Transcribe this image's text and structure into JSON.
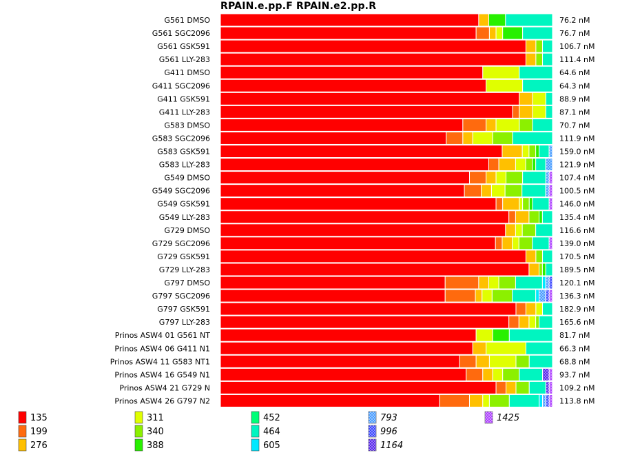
{
  "title": "RPAIN.e.pp.F  RPAIN.e2.pp.R",
  "chart_data": {
    "type": "bar",
    "orientation": "horizontal",
    "stacked": true,
    "normalized": true,
    "title": "RPAIN.e.pp.F  RPAIN.e2.pp.R",
    "categories": [
      "G561 DMSO",
      "G561 SGC2096",
      "G561 GSK591",
      "G561 LLY-283",
      "G411 DMSO",
      "G411 SGC2096",
      "G411 GSK591",
      "G411 LLY-283",
      "G583 DMSO",
      "G583 SGC2096",
      "G583 GSK591",
      "G583 LLY-283",
      "G549 DMSO",
      "G549 SGC2096",
      "G549 GSK591",
      "G549 LLY-283",
      "G729 DMSO",
      "G729 SGC2096",
      "G729 GSK591",
      "G729 LLY-283",
      "G797 DMSO",
      "G797 SGC2096",
      "G797 GSK591",
      "G797 LLY-283",
      "Prinos ASW4 01 G561 NT",
      "Prinos ASW4 06 G411 N1",
      "Prinos ASW4 11 G583 NT1",
      "Prinos ASW4 16 G549 N1",
      "Prinos ASW4 21 G729 N",
      "Prinos ASW4 26 G797 N2"
    ],
    "row_values": [
      "76.2 nM",
      "76.7 nM",
      "106.7 nM",
      "111.4 nM",
      "64.6 nM",
      "64.3 nM",
      "88.9 nM",
      "87.1 nM",
      "70.7 nM",
      "111.9 nM",
      "159.0 nM",
      "121.9 nM",
      "107.4 nM",
      "100.5 nM",
      "146.0 nM",
      "135.4 nM",
      "116.6 nM",
      "139.0 nM",
      "170.5 nM",
      "189.5 nM",
      "120.1 nM",
      "136.3 nM",
      "182.9 nM",
      "165.6 nM",
      "81.7 nM",
      "66.3 nM",
      "68.8 nM",
      "93.7 nM",
      "109.2 nM",
      "113.8 nM"
    ],
    "legend": [
      {
        "label": "135",
        "color": "#ff0000",
        "italic": false
      },
      {
        "label": "199",
        "color": "#ff6a0e",
        "italic": false
      },
      {
        "label": "276",
        "color": "#ffc000",
        "italic": false
      },
      {
        "label": "311",
        "color": "#e0ff00",
        "italic": false
      },
      {
        "label": "340",
        "color": "#8cf000",
        "italic": false
      },
      {
        "label": "388",
        "color": "#28f000",
        "italic": false
      },
      {
        "label": "452",
        "color": "#00ff78",
        "italic": false
      },
      {
        "label": "464",
        "color": "#00f5c0",
        "italic": false
      },
      {
        "label": "605",
        "color": "#00e8ff",
        "italic": false
      },
      {
        "label": "793",
        "color": "#2a8cff",
        "italic": true
      },
      {
        "label": "996",
        "color": "#1a28ff",
        "italic": true
      },
      {
        "label": "1164",
        "color": "#3a00e8",
        "italic": true
      },
      {
        "label": "1425",
        "color": "#a020ff",
        "italic": true
      }
    ],
    "series_percent": [
      [
        77,
        0,
        3,
        0,
        0,
        5,
        0,
        14,
        0,
        0,
        0,
        0,
        0
      ],
      [
        77,
        4,
        2,
        2,
        0,
        6,
        0,
        9,
        0,
        0,
        0,
        0,
        0
      ],
      [
        92,
        0,
        3,
        0,
        2,
        0,
        0,
        3,
        0,
        0,
        0,
        0,
        0
      ],
      [
        92,
        0,
        3,
        0,
        2,
        0,
        0,
        3,
        0,
        0,
        0,
        0,
        0
      ],
      [
        79,
        0,
        0,
        11,
        0,
        0,
        0,
        10,
        0,
        0,
        0,
        0,
        0
      ],
      [
        80,
        0,
        0,
        11,
        0,
        0,
        0,
        9,
        0,
        0,
        0,
        0,
        0
      ],
      [
        90,
        0,
        4,
        4,
        0,
        0,
        0,
        2,
        0,
        0,
        0,
        0,
        0
      ],
      [
        88,
        2,
        4,
        4,
        0,
        0,
        0,
        2,
        0,
        0,
        0,
        0,
        0
      ],
      [
        73,
        7,
        3,
        7,
        4,
        0,
        0,
        6,
        0,
        0,
        0,
        0,
        0
      ],
      [
        68,
        5,
        3,
        6,
        6,
        0,
        0,
        12,
        0,
        0,
        0,
        0,
        0
      ],
      [
        84,
        0,
        6,
        2,
        2,
        1,
        0,
        3,
        0,
        1,
        0,
        0,
        0
      ],
      [
        80,
        3,
        5,
        3,
        2,
        1,
        0,
        3,
        0,
        2,
        0,
        0,
        0
      ],
      [
        75,
        5,
        3,
        3,
        5,
        0,
        0,
        7,
        0,
        1,
        0,
        0,
        1
      ],
      [
        72,
        5,
        3,
        4,
        5,
        0,
        0,
        7,
        0,
        1,
        0,
        0,
        1
      ],
      [
        83,
        2,
        5,
        1,
        2,
        1,
        0,
        5,
        0,
        0,
        0,
        0,
        1
      ],
      [
        86,
        2,
        4,
        0,
        3,
        1,
        0,
        3,
        0,
        0,
        0,
        0,
        0
      ],
      [
        85,
        0,
        3,
        2,
        4,
        0,
        0,
        5,
        0,
        0,
        0,
        0,
        0
      ],
      [
        82,
        2,
        3,
        2,
        4,
        0,
        0,
        5,
        0,
        0,
        0,
        0,
        1
      ],
      [
        92,
        0,
        3,
        0,
        2,
        0,
        0,
        3,
        0,
        0,
        0,
        0,
        0
      ],
      [
        92,
        0,
        3,
        0,
        1,
        1,
        0,
        2,
        0,
        0,
        0,
        0,
        0
      ],
      [
        67,
        10,
        3,
        3,
        5,
        0,
        0,
        8,
        1,
        1,
        1,
        0,
        0
      ],
      [
        67,
        9,
        2,
        3,
        6,
        0,
        0,
        7,
        1,
        2,
        1,
        0,
        1
      ],
      [
        89,
        3,
        3,
        2,
        0,
        0,
        0,
        3,
        0,
        0,
        0,
        0,
        0
      ],
      [
        86,
        3,
        3,
        2,
        1,
        0,
        0,
        4,
        0,
        0,
        0,
        0,
        0
      ],
      [
        77,
        0,
        0,
        5,
        0,
        5,
        0,
        13,
        0,
        0,
        0,
        0,
        0
      ],
      [
        76,
        0,
        4,
        12,
        0,
        0,
        0,
        8,
        0,
        0,
        0,
        0,
        0
      ],
      [
        72,
        5,
        4,
        8,
        4,
        0,
        0,
        7,
        0,
        0,
        0,
        0,
        0
      ],
      [
        74,
        5,
        3,
        3,
        5,
        0,
        0,
        7,
        0,
        0,
        0,
        2,
        1
      ],
      [
        83,
        3,
        3,
        0,
        4,
        0,
        0,
        5,
        0,
        0,
        0,
        1,
        1
      ],
      [
        66,
        9,
        4,
        2,
        6,
        0,
        0,
        9,
        1,
        1,
        1,
        0,
        1
      ]
    ],
    "xlim": [
      0,
      100
    ]
  }
}
